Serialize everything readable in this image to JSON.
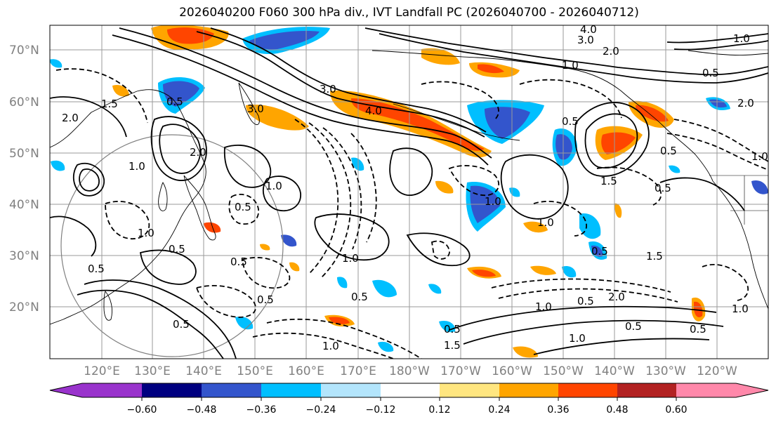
{
  "title": "2026040200 F060 300 hPa div., IVT Landfall PC (2026040700 - 2026040712)",
  "map": {
    "lat_ticks": [
      "70°N",
      "60°N",
      "50°N",
      "40°N",
      "30°N",
      "20°N"
    ],
    "lat_values": [
      70,
      60,
      50,
      40,
      30,
      20
    ],
    "lon_ticks": [
      "120°E",
      "130°E",
      "140°E",
      "150°E",
      "160°E",
      "170°E",
      "180°W",
      "170°W",
      "160°W",
      "150°W",
      "140°W",
      "130°W",
      "120°W"
    ],
    "contour_labels": [
      "4.0",
      "3.0",
      "2.0",
      "1.5",
      "1.0",
      "0.5",
      "0.5",
      "1.0",
      "0.5",
      "0.5",
      "1.0",
      "0.5",
      "3.0",
      "2.0",
      "4.0",
      "1.0",
      "0.5",
      "1.5",
      "0.5",
      "1.0",
      "2.0",
      "0.5",
      "1.0",
      "0.5",
      "0.5",
      "3.0",
      "1.0",
      "2.0",
      "0.5",
      "1.0",
      "1.5",
      "0.5",
      "1.0",
      "0.5",
      "1.0",
      "0.5",
      "2.0",
      "1.5",
      "0.5",
      "0.5",
      "1.0",
      "0.5",
      "1.0",
      "1.0"
    ]
  },
  "colorbar": {
    "tick_labels": [
      "−0.60",
      "−0.48",
      "−0.36",
      "−0.24",
      "−0.12",
      "0.12",
      "0.24",
      "0.36",
      "0.48",
      "0.60"
    ],
    "colors": [
      "#9933cc",
      "#000080",
      "#3355cc",
      "#00bfff",
      "#b3e5fc",
      "#ffffff",
      "#ffe680",
      "#ffa500",
      "#ff4500",
      "#b22222",
      "#ff88aa"
    ],
    "under_color": "#9933cc",
    "over_color": "#ff88aa"
  }
}
